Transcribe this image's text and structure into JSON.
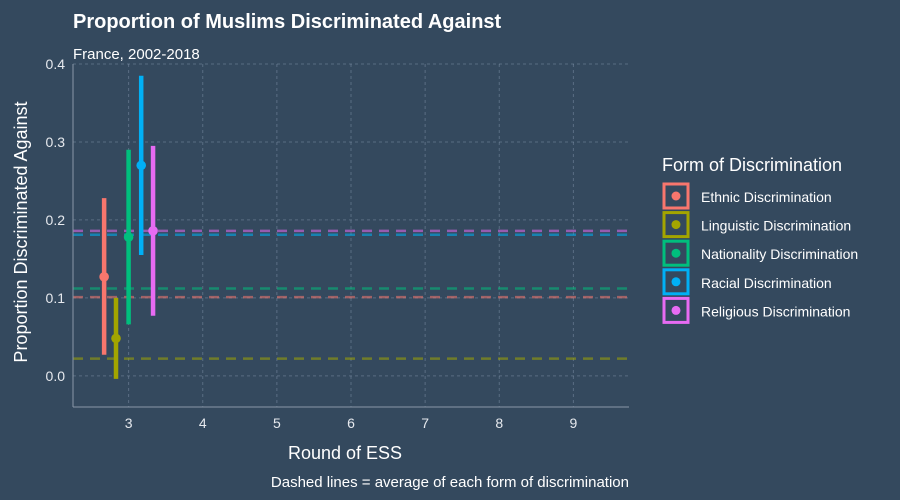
{
  "chart_data": {
    "type": "scatter",
    "title": "Proportion of Muslims Discriminated Against",
    "subtitle": "France, 2002-2018",
    "xlabel": "Round of ESS",
    "ylabel": "Proportion Discriminated Against",
    "caption": "Dashed lines = average of each form of discrimination",
    "xlim": [
      2.25,
      9.75
    ],
    "ylim": [
      -0.04,
      0.4
    ],
    "x_ticks": [
      3,
      4,
      5,
      6,
      7,
      8,
      9
    ],
    "y_ticks": [
      0.0,
      0.1,
      0.2,
      0.3,
      0.4
    ],
    "y_tick_labels": [
      "0.0",
      "0.1",
      "0.2",
      "0.3",
      "0.4"
    ],
    "grid": true,
    "legend": {
      "title": "Form of Discrimination",
      "position": "right"
    },
    "series": [
      {
        "name": "Ethnic Discrimination",
        "color": "#f8766d",
        "points": [
          {
            "x": 2.67,
            "y": 0.127,
            "ymin": 0.027,
            "ymax": 0.228
          }
        ],
        "average": 0.101
      },
      {
        "name": "Linguistic Discrimination",
        "color": "#a3a500",
        "points": [
          {
            "x": 2.83,
            "y": 0.048,
            "ymin": -0.004,
            "ymax": 0.1
          }
        ],
        "average": 0.022
      },
      {
        "name": "Nationality Discrimination",
        "color": "#00bf7d",
        "points": [
          {
            "x": 3.0,
            "y": 0.178,
            "ymin": 0.066,
            "ymax": 0.29
          }
        ],
        "average": 0.112
      },
      {
        "name": "Racial Discrimination",
        "color": "#00b0f6",
        "points": [
          {
            "x": 3.17,
            "y": 0.27,
            "ymin": 0.155,
            "ymax": 0.385
          }
        ],
        "average": 0.181
      },
      {
        "name": "Religious Discrimination",
        "color": "#e76bf3",
        "points": [
          {
            "x": 3.33,
            "y": 0.186,
            "ymin": 0.077,
            "ymax": 0.295
          }
        ],
        "average": 0.186
      }
    ]
  }
}
